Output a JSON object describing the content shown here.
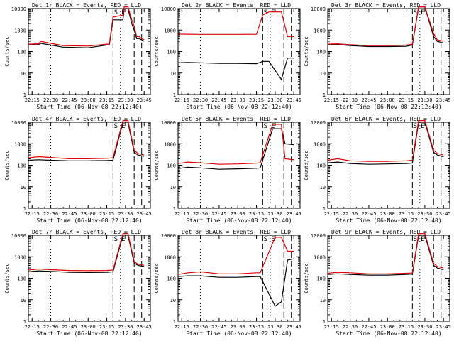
{
  "figure": {
    "ylabel": "Counts/sec",
    "xlabel": "Start Time (06-Nov-08 22:12:40)",
    "xtick_labels": [
      "22:15",
      "22:30",
      "22:45",
      "23:00",
      "23:15",
      "23:30",
      "23:45"
    ],
    "ytick_labels": [
      "1",
      "10",
      "100",
      "1000",
      "10000"
    ],
    "marker_labels": [
      "S",
      "E"
    ],
    "colors": {
      "events": "#000000",
      "lld": "#e00000",
      "axes": "#000000",
      "background": "#ffffff"
    }
  },
  "chart_data": [
    {
      "type": "line",
      "title": "Det 1r BLACK = Events, RED = LLD",
      "ylim": [
        1,
        10000
      ],
      "yscale": "log",
      "series": [
        {
          "name": "Events",
          "color": "#000000",
          "x": [
            "22:12",
            "22:20",
            "22:22",
            "22:30",
            "22:40",
            "23:00",
            "23:15",
            "23:17",
            "23:20",
            "23:28",
            "23:29",
            "23:32",
            "23:35",
            "23:37",
            "23:39",
            "23:41",
            "23:43",
            "23:45"
          ],
          "y": [
            200,
            210,
            240,
            200,
            160,
            150,
            200,
            200,
            3000,
            3000,
            10000,
            10000,
            2000,
            1000,
            400,
            400,
            350,
            300
          ]
        },
        {
          "name": "LLD",
          "color": "#e00000",
          "x": [
            "22:12",
            "22:20",
            "22:22",
            "22:30",
            "22:40",
            "23:00",
            "23:15",
            "23:17",
            "23:20",
            "23:28",
            "23:29",
            "23:32",
            "23:35",
            "23:37",
            "23:39",
            "23:41",
            "23:43",
            "23:45"
          ],
          "y": [
            220,
            230,
            300,
            240,
            190,
            180,
            220,
            220,
            4000,
            5000,
            12000,
            12000,
            3000,
            1500,
            500,
            500,
            400,
            350
          ]
        }
      ]
    },
    {
      "type": "line",
      "title": "Det 2r BLACK = Events, RED = LLD",
      "ylim": [
        1,
        10000
      ],
      "yscale": "log",
      "series": [
        {
          "name": "Events",
          "color": "#000000",
          "x": [
            "22:12",
            "22:20",
            "22:30",
            "22:45",
            "23:00",
            "23:15",
            "23:20",
            "23:25",
            "23:35",
            "23:40",
            "23:45"
          ],
          "y": [
            30,
            31,
            30,
            28,
            28,
            27,
            35,
            35,
            5,
            50,
            50
          ]
        },
        {
          "name": "LLD",
          "color": "#e00000",
          "x": [
            "22:12",
            "22:20",
            "22:30",
            "22:45",
            "23:00",
            "23:15",
            "23:20",
            "23:25",
            "23:35",
            "23:40",
            "23:45"
          ],
          "y": [
            650,
            640,
            630,
            630,
            630,
            640,
            5000,
            7000,
            7000,
            500,
            500
          ]
        }
      ]
    },
    {
      "type": "line",
      "title": "Det 3r BLACK = Events, RED = LLD",
      "ylim": [
        1,
        10000
      ],
      "yscale": "log",
      "series": [
        {
          "name": "Events",
          "color": "#000000",
          "x": [
            "22:12",
            "22:20",
            "22:30",
            "22:45",
            "23:00",
            "23:15",
            "23:20",
            "23:25",
            "23:30",
            "23:37",
            "23:40",
            "23:45"
          ],
          "y": [
            200,
            210,
            190,
            170,
            170,
            175,
            200,
            12000,
            12000,
            500,
            300,
            250
          ]
        },
        {
          "name": "LLD",
          "color": "#e00000",
          "x": [
            "22:12",
            "22:20",
            "22:30",
            "22:45",
            "23:00",
            "23:15",
            "23:20",
            "23:25",
            "23:30",
            "23:37",
            "23:40",
            "23:45"
          ],
          "y": [
            220,
            230,
            210,
            190,
            190,
            200,
            220,
            12000,
            12000,
            700,
            350,
            300
          ]
        }
      ]
    },
    {
      "type": "line",
      "title": "Det 4r BLACK = Events, RED = LLD",
      "ylim": [
        1,
        10000
      ],
      "yscale": "log",
      "series": [
        {
          "name": "Events",
          "color": "#000000",
          "x": [
            "22:12",
            "22:20",
            "22:30",
            "22:45",
            "23:00",
            "23:15",
            "23:20",
            "23:28",
            "23:32",
            "23:37",
            "23:40",
            "23:45"
          ],
          "y": [
            170,
            180,
            170,
            160,
            160,
            165,
            170,
            10000,
            10000,
            400,
            300,
            260
          ]
        },
        {
          "name": "LLD",
          "color": "#e00000",
          "x": [
            "22:12",
            "22:20",
            "22:30",
            "22:45",
            "23:00",
            "23:15",
            "23:20",
            "23:28",
            "23:32",
            "23:37",
            "23:40",
            "23:45"
          ],
          "y": [
            220,
            250,
            230,
            200,
            200,
            210,
            220,
            12000,
            12000,
            500,
            350,
            300
          ]
        }
      ]
    },
    {
      "type": "line",
      "title": "Det 5r BLACK = Events, RED = LLD",
      "ylim": [
        1,
        10000
      ],
      "yscale": "log",
      "series": [
        {
          "name": "Events",
          "color": "#000000",
          "x": [
            "22:12",
            "22:20",
            "22:30",
            "22:45",
            "23:00",
            "23:15",
            "23:18",
            "23:28",
            "23:35",
            "23:38",
            "23:45"
          ],
          "y": [
            70,
            80,
            75,
            65,
            68,
            72,
            75,
            5000,
            5000,
            1000,
            900
          ]
        },
        {
          "name": "LLD",
          "color": "#e00000",
          "x": [
            "22:12",
            "22:20",
            "22:30",
            "22:45",
            "23:00",
            "23:15",
            "23:18",
            "23:28",
            "23:35",
            "23:38",
            "23:45"
          ],
          "y": [
            120,
            140,
            130,
            110,
            115,
            125,
            130,
            8000,
            8000,
            200,
            180
          ]
        }
      ]
    },
    {
      "type": "line",
      "title": "Det 6r BLACK = Events, RED = LLD",
      "ylim": [
        1,
        10000
      ],
      "yscale": "log",
      "series": [
        {
          "name": "Events",
          "color": "#000000",
          "x": [
            "22:12",
            "22:20",
            "22:30",
            "22:45",
            "23:00",
            "23:15",
            "23:20",
            "23:25",
            "23:30",
            "23:37",
            "23:40",
            "23:45"
          ],
          "y": [
            130,
            140,
            120,
            110,
            115,
            120,
            125,
            10000,
            10000,
            400,
            300,
            250
          ]
        },
        {
          "name": "LLD",
          "color": "#e00000",
          "x": [
            "22:12",
            "22:20",
            "22:30",
            "22:45",
            "23:00",
            "23:15",
            "23:20",
            "23:25",
            "23:30",
            "23:37",
            "23:40",
            "23:45"
          ],
          "y": [
            170,
            200,
            160,
            150,
            150,
            160,
            170,
            12000,
            12000,
            500,
            350,
            300
          ]
        }
      ]
    },
    {
      "type": "line",
      "title": "Det 7r BLACK = Events, RED = LLD",
      "ylim": [
        1,
        10000
      ],
      "yscale": "log",
      "series": [
        {
          "name": "Events",
          "color": "#000000",
          "x": [
            "22:12",
            "22:20",
            "22:30",
            "22:45",
            "23:00",
            "23:15",
            "23:20",
            "23:28",
            "23:32",
            "23:37",
            "23:40",
            "23:45"
          ],
          "y": [
            200,
            220,
            210,
            190,
            185,
            190,
            200,
            10000,
            10000,
            500,
            400,
            350
          ]
        },
        {
          "name": "LLD",
          "color": "#e00000",
          "x": [
            "22:12",
            "22:20",
            "22:30",
            "22:45",
            "23:00",
            "23:15",
            "23:20",
            "23:28",
            "23:32",
            "23:37",
            "23:40",
            "23:45"
          ],
          "y": [
            240,
            270,
            250,
            230,
            225,
            230,
            240,
            12000,
            12000,
            600,
            450,
            400
          ]
        }
      ]
    },
    {
      "type": "line",
      "title": "Det 8r BLACK = Events, RED = LLD",
      "ylim": [
        1,
        10000
      ],
      "yscale": "log",
      "series": [
        {
          "name": "Events",
          "color": "#000000",
          "x": [
            "22:12",
            "22:20",
            "22:30",
            "22:45",
            "23:00",
            "23:15",
            "23:18",
            "23:30",
            "23:35",
            "23:40",
            "23:45"
          ],
          "y": [
            120,
            130,
            130,
            110,
            110,
            120,
            120,
            5,
            8,
            700,
            800
          ]
        },
        {
          "name": "LLD",
          "color": "#e00000",
          "x": [
            "22:12",
            "22:20",
            "22:30",
            "22:45",
            "23:00",
            "23:15",
            "23:18",
            "23:30",
            "23:35",
            "23:40",
            "23:45"
          ],
          "y": [
            150,
            180,
            200,
            160,
            160,
            180,
            180,
            8000,
            8000,
            1800,
            1800
          ]
        }
      ]
    },
    {
      "type": "line",
      "title": "Det 9r BLACK = Events, RED = LLD",
      "ylim": [
        1,
        10000
      ],
      "yscale": "log",
      "series": [
        {
          "name": "Events",
          "color": "#000000",
          "x": [
            "22:12",
            "22:20",
            "22:30",
            "22:45",
            "23:00",
            "23:15",
            "23:20",
            "23:25",
            "23:30",
            "23:37",
            "23:40",
            "23:45"
          ],
          "y": [
            150,
            160,
            150,
            140,
            140,
            150,
            155,
            10000,
            10000,
            400,
            300,
            250
          ]
        },
        {
          "name": "LLD",
          "color": "#e00000",
          "x": [
            "22:12",
            "22:20",
            "22:30",
            "22:45",
            "23:00",
            "23:15",
            "23:20",
            "23:25",
            "23:30",
            "23:37",
            "23:40",
            "23:45"
          ],
          "y": [
            170,
            190,
            180,
            160,
            160,
            170,
            175,
            12000,
            12000,
            500,
            350,
            300
          ]
        }
      ]
    }
  ]
}
